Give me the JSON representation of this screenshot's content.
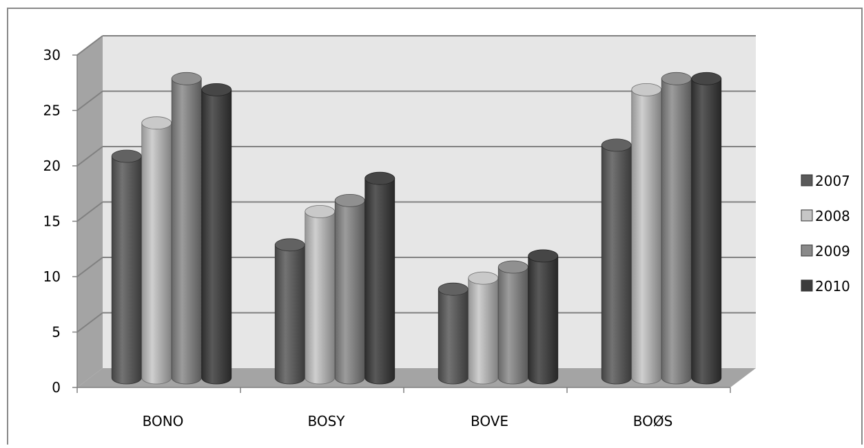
{
  "chart_data": {
    "type": "bar",
    "variant": "3d-cylinder-clustered",
    "categories": [
      "BONO",
      "BOSY",
      "BOVE",
      "BOØS"
    ],
    "series": [
      {
        "name": "2007",
        "values": [
          20,
          12,
          8,
          21
        ],
        "color": "#5a5a5a"
      },
      {
        "name": "2008",
        "values": [
          23,
          15,
          9,
          26
        ],
        "color": "#c6c6c6"
      },
      {
        "name": "2009",
        "values": [
          27,
          16,
          10,
          27
        ],
        "color": "#8a8a8a"
      },
      {
        "name": "2010",
        "values": [
          26,
          18,
          11,
          27
        ],
        "color": "#3c3c3c"
      }
    ],
    "y_ticks": [
      "0",
      "5",
      "10",
      "15",
      "20",
      "25",
      "30"
    ],
    "ylim": [
      0,
      30
    ],
    "title": "",
    "xlabel": "",
    "ylabel": "",
    "grid": true,
    "legend_position": "right",
    "colors": {
      "back_wall": "#e6e6e6",
      "side_wall": "#a4a4a4",
      "floor": "#a4a4a4",
      "gridline": "#808080",
      "frame_border": "#888888"
    }
  }
}
